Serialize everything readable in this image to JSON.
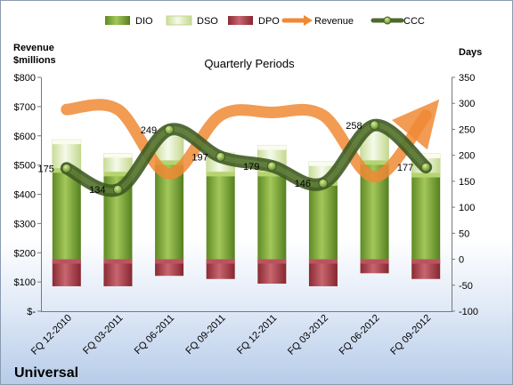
{
  "chart_data": {
    "type": "bar",
    "title": "Quarterly Periods",
    "left_axis_title": [
      "Revenue",
      "$millions"
    ],
    "right_axis_title": "Days",
    "brand": "Universal",
    "categories": [
      "FQ 12-2010",
      "FQ 03-2011",
      "FQ 06-2011",
      "FQ 09-2011",
      "FQ 12-2011",
      "FQ 03-2012",
      "FQ 06-2012",
      "FQ 09-2012"
    ],
    "left_ylim": [
      0,
      800
    ],
    "left_ticks": [
      "$-",
      "$100",
      "$200",
      "$300",
      "$400",
      "$500",
      "$600",
      "$700",
      "$800"
    ],
    "right_ylim": [
      -100,
      350
    ],
    "right_ticks": [
      "-100",
      "-50",
      "0",
      "50",
      "100",
      "150",
      "200",
      "250",
      "300",
      "350"
    ],
    "grid": false,
    "legend_position": "top",
    "series": [
      {
        "name": "DIO",
        "axis": "right",
        "kind": "stacked-bar",
        "color": "#7faa3a",
        "values": [
          175,
          168,
          190,
          168,
          168,
          150,
          190,
          166
        ]
      },
      {
        "name": "DSO",
        "axis": "right",
        "kind": "stacked-bar",
        "color": "#e4f0c6",
        "values": [
          55,
          36,
          55,
          37,
          51,
          38,
          65,
          37
        ]
      },
      {
        "name": "DPO",
        "axis": "right",
        "kind": "negative-bar",
        "color": "#a83c45",
        "values": [
          -52,
          -52,
          -32,
          -38,
          -47,
          -52,
          -27,
          -38
        ]
      },
      {
        "name": "Revenue",
        "axis": "left",
        "kind": "line",
        "color": "#f08a35",
        "values": [
          690,
          690,
          470,
          670,
          680,
          670,
          460,
          670
        ]
      },
      {
        "name": "CCC",
        "axis": "right",
        "kind": "line",
        "color": "#4e6a2c",
        "values": [
          175,
          134,
          249,
          197,
          179,
          146,
          258,
          177
        ]
      }
    ],
    "ccc_labels": [
      "175",
      "134",
      "249",
      "197",
      "179",
      "146",
      "258",
      "177"
    ]
  }
}
